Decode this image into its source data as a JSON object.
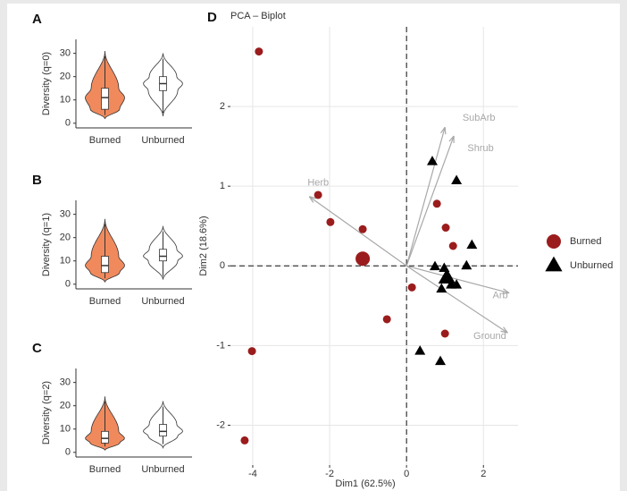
{
  "chart_data": [
    {
      "type": "violin",
      "panel_label": "A",
      "ylabel": "Diversity (q=0)",
      "categories": [
        "Burned",
        "Unburned"
      ],
      "colors": [
        "#f08a5d",
        "#ffffff"
      ],
      "boxes": [
        {
          "min": 2,
          "q1": 6,
          "median": 11,
          "q3": 15,
          "max": 31
        },
        {
          "min": 3,
          "q1": 14,
          "median": 17,
          "q3": 20,
          "max": 30
        }
      ],
      "ylim": [
        -2,
        36
      ],
      "yticks": [
        0,
        10,
        20,
        30
      ]
    },
    {
      "type": "violin",
      "panel_label": "B",
      "ylabel": "Diversity (q=1)",
      "categories": [
        "Burned",
        "Unburned"
      ],
      "colors": [
        "#f08a5d",
        "#ffffff"
      ],
      "boxes": [
        {
          "min": 1,
          "q1": 5,
          "median": 8,
          "q3": 12,
          "max": 28
        },
        {
          "min": 2,
          "q1": 10,
          "median": 12,
          "q3": 15,
          "max": 25
        }
      ],
      "ylim": [
        -2,
        36
      ],
      "yticks": [
        0,
        10,
        20,
        30
      ]
    },
    {
      "type": "violin",
      "panel_label": "C",
      "ylabel": "Diversity (q=2)",
      "categories": [
        "Burned",
        "Unburned"
      ],
      "colors": [
        "#f08a5d",
        "#ffffff"
      ],
      "boxes": [
        {
          "min": 1,
          "q1": 4,
          "median": 6,
          "q3": 9,
          "max": 24
        },
        {
          "min": 2,
          "q1": 7,
          "median": 9,
          "q3": 12,
          "max": 22
        }
      ],
      "ylim": [
        -2,
        36
      ],
      "yticks": [
        0,
        10,
        20,
        30
      ]
    },
    {
      "type": "scatter",
      "panel_label": "D",
      "title": "PCA – Biplot",
      "xlabel": "Dim1 (62.5%)",
      "ylabel": "Dim2 (18.6%)",
      "xlim": [
        -4.58,
        2.9
      ],
      "ylim": [
        -2.5,
        3.0
      ],
      "xticks": [
        -4,
        -2,
        0,
        2
      ],
      "yticks": [
        -2,
        -1,
        0,
        1,
        2
      ],
      "grid": true,
      "series": [
        {
          "name": "Burned",
          "color": "#9b1c1c",
          "marker": "circle",
          "x": [
            -3.84,
            -2.3,
            -1.98,
            -1.14,
            -1.14,
            0.14,
            -0.51,
            0.79,
            1.02,
            1.21,
            1.0,
            -4.02,
            -4.21
          ],
          "y": [
            2.69,
            0.89,
            0.55,
            0.46,
            0.09,
            -0.27,
            -0.67,
            0.78,
            0.48,
            0.25,
            -0.85,
            -1.07,
            -2.19
          ],
          "sizes": [
            4.5,
            4.5,
            4.5,
            4.5,
            8,
            4.5,
            4.5,
            4.5,
            4.5,
            4.5,
            4.5,
            4.5,
            4.5
          ]
        },
        {
          "name": "Unburned",
          "color": "#000000",
          "marker": "triangle",
          "x": [
            0.67,
            1.3,
            1.7,
            1.56,
            0.74,
            0.98,
            1.05,
            1.16,
            1.3,
            0.91,
            0.35,
            0.88
          ],
          "y": [
            1.31,
            1.07,
            0.26,
            0.0,
            -0.01,
            -0.03,
            -0.15,
            -0.24,
            -0.24,
            -0.29,
            -1.07,
            -1.2
          ],
          "sizes": [
            5,
            5,
            5,
            5,
            5,
            5,
            8,
            5,
            5,
            5,
            5,
            5
          ]
        }
      ],
      "arrow_color": "#a8a8a8",
      "arrows": [
        {
          "label": "SubArb",
          "x": 1.0,
          "y": 1.74
        },
        {
          "label": "Shrub",
          "x": 1.23,
          "y": 1.63
        },
        {
          "label": "Herb",
          "x": -2.53,
          "y": 0.87
        },
        {
          "label": "Arb",
          "x": 2.67,
          "y": -0.34
        },
        {
          "label": "Ground",
          "x": 2.63,
          "y": -0.84
        }
      ],
      "legend": "right"
    }
  ]
}
